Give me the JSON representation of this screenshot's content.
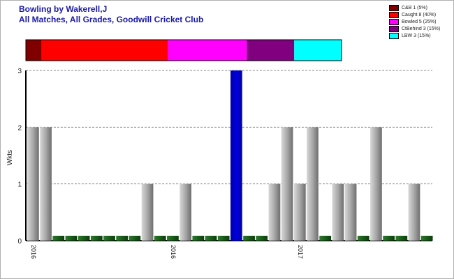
{
  "header": {
    "title": "Bowling by Wakerell,J",
    "subtitle": "All Matches, All Grades, Goodwill Cricket Club"
  },
  "legend": [
    {
      "label": "C&B 1 (5%)",
      "color": "#800000"
    },
    {
      "label": "Caught 8 (40%)",
      "color": "#ff0000"
    },
    {
      "label": "Bowled 5 (25%)",
      "color": "#ff00ff"
    },
    {
      "label": "CtBehind 3 (15%)",
      "color": "#800080"
    },
    {
      "label": "LBW 3 (15%)",
      "color": "#00ffff"
    }
  ],
  "chart_data": [
    {
      "type": "bar",
      "title": "Wicket breakdown",
      "stacked_horizontal": true,
      "series": [
        {
          "name": "C&B",
          "value": 1,
          "percent": 5,
          "color": "#800000"
        },
        {
          "name": "Caught",
          "value": 8,
          "percent": 40,
          "color": "#ff0000"
        },
        {
          "name": "Bowled",
          "value": 5,
          "percent": 25,
          "color": "#ff00ff"
        },
        {
          "name": "CtBehind",
          "value": 3,
          "percent": 15,
          "color": "#800080"
        },
        {
          "name": "LBW",
          "value": 3,
          "percent": 15,
          "color": "#00ffff"
        }
      ]
    },
    {
      "type": "bar",
      "ylabel": "Wkts",
      "ylim": [
        0,
        3
      ],
      "yticks": [
        0,
        1,
        2,
        3
      ],
      "grid": true,
      "x_tick_labels": [
        {
          "index": 0,
          "label": "2016"
        },
        {
          "index": 11,
          "label": "2016"
        },
        {
          "index": 21,
          "label": "2017"
        }
      ],
      "values": [
        2,
        2,
        0,
        0,
        0,
        0,
        0,
        0,
        0,
        1,
        0,
        0,
        1,
        0,
        0,
        0,
        3,
        0,
        0,
        1,
        2,
        1,
        2,
        0,
        1,
        1,
        0,
        2,
        0,
        0,
        1,
        0
      ],
      "highlight_index": 16,
      "colors": {
        "bar": "#a0a0a0",
        "highlight": "#0000cc",
        "zero": "#1a5c1a"
      }
    }
  ]
}
